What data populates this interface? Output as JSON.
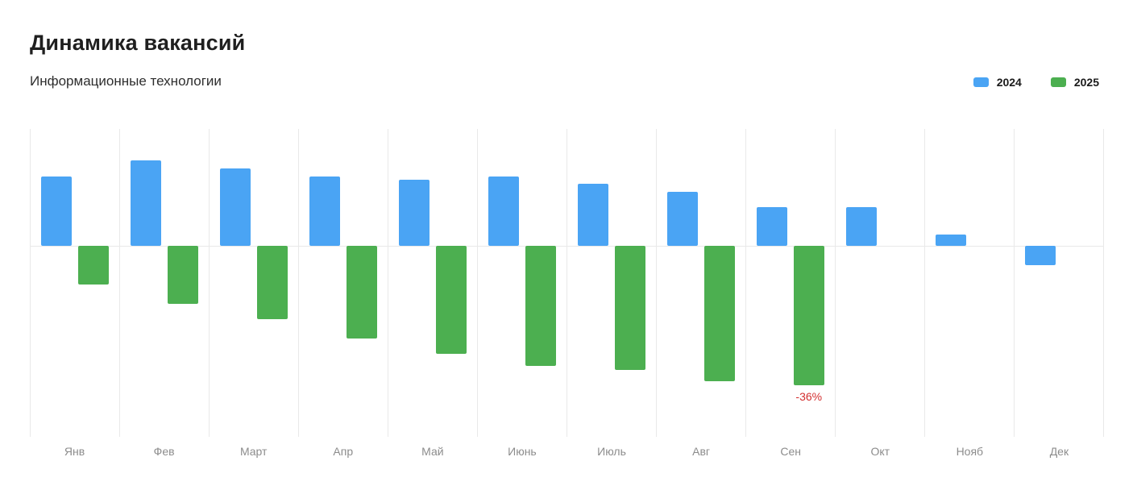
{
  "header": {
    "title": "Динамика вакансий",
    "subtitle": "Информационные технологии"
  },
  "legend": [
    {
      "label": "2024",
      "color": "#4AA4F4"
    },
    {
      "label": "2025",
      "color": "#4CAF50"
    }
  ],
  "chart_data": {
    "type": "bar",
    "title": "Динамика вакансий",
    "subtitle": "Информационные технологии",
    "categories": [
      "Янв",
      "Фев",
      "Март",
      "Апр",
      "Май",
      "Июнь",
      "Июль",
      "Авг",
      "Сен",
      "Окт",
      "Нояб",
      "Дек"
    ],
    "series": [
      {
        "name": "2024",
        "color": "#4AA4F4",
        "values": [
          18,
          22,
          20,
          18,
          17,
          18,
          16,
          14,
          10,
          10,
          3,
          -5
        ]
      },
      {
        "name": "2025",
        "color": "#4CAF50",
        "values": [
          -10,
          -15,
          -19,
          -24,
          -28,
          -31,
          -32,
          -35,
          -36,
          null,
          null,
          null
        ]
      }
    ],
    "annotations": [
      {
        "series": "2025",
        "category": "Сен",
        "text": "-36%",
        "color": "#d32f2f"
      }
    ],
    "xlabel": "",
    "ylabel": "",
    "units": "%",
    "ylim": [
      -40,
      25
    ],
    "baseline": 0,
    "grid": "vertical",
    "legend_position": "top-right"
  }
}
